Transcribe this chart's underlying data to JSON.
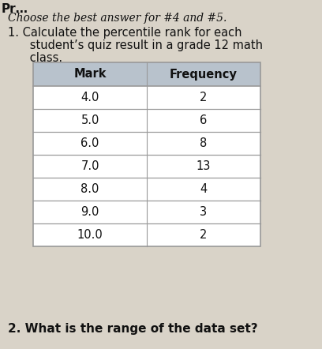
{
  "header_text": "Choose the best answer for #4 and #5.",
  "header_prefix": "Pr…",
  "question1_line1": "1. Calculate the percentile rank for each",
  "question1_line2": "      student’s quiz result in a grade 12 math",
  "question1_line3": "      class.",
  "col1_header": "Mark",
  "col2_header": "Frequency",
  "marks": [
    "4.0",
    "5.0",
    "6.0",
    "7.0",
    "8.0",
    "9.0",
    "10.0"
  ],
  "frequencies": [
    "2",
    "6",
    "8",
    "13",
    "4",
    "3",
    "2"
  ],
  "question2": "2. What is the range of the data set?",
  "bg_color": "#d9d3c8",
  "header_row_color": "#b8c2cc",
  "table_bg_color": "#ffffff",
  "table_line_color": "#999999",
  "text_color": "#111111"
}
